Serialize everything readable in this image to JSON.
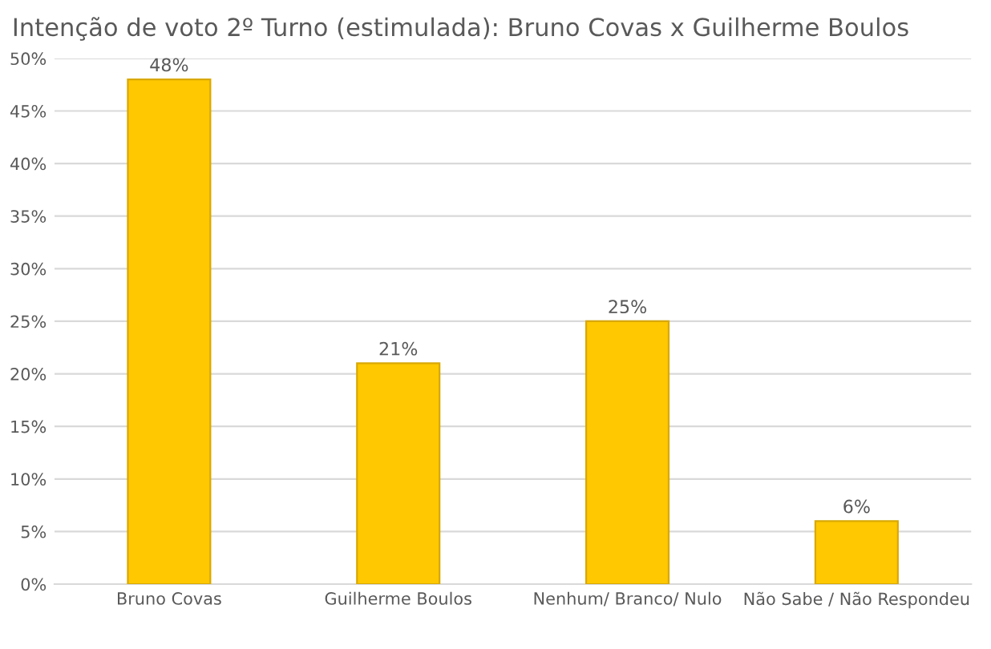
{
  "chart_data": {
    "type": "bar",
    "title": "Intenção de voto 2º Turno (estimulada): Bruno Covas x Guilherme Boulos",
    "categories": [
      "Bruno Covas",
      "Guilherme Boulos",
      "Nenhum/ Branco/ Nulo",
      "Não Sabe / Não Respondeu"
    ],
    "values": [
      48,
      21,
      25,
      6
    ],
    "color": "#ffc800",
    "value_labels": [
      "48%",
      "21%",
      "25%",
      "6%"
    ],
    "ylim": [
      0,
      50
    ],
    "yticks": [
      {
        "value": 0,
        "label": "0%"
      },
      {
        "value": 5,
        "label": "5%"
      },
      {
        "value": 10,
        "label": "10%"
      },
      {
        "value": 15,
        "label": "15%"
      },
      {
        "value": 20,
        "label": "20%"
      },
      {
        "value": 25,
        "label": "25%"
      },
      {
        "value": 30,
        "label": "30%"
      },
      {
        "value": 35,
        "label": "35%"
      },
      {
        "value": 40,
        "label": "40%"
      },
      {
        "value": 45,
        "label": "45%"
      },
      {
        "value": 50,
        "label": "50%"
      }
    ],
    "grid": "y"
  }
}
